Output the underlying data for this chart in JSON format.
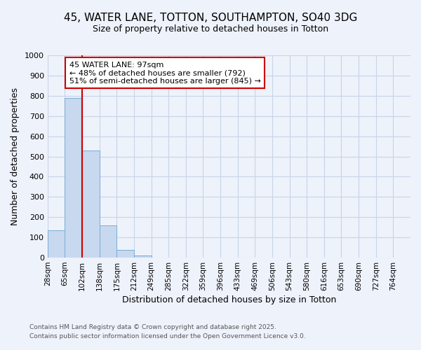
{
  "title_line1": "45, WATER LANE, TOTTON, SOUTHAMPTON, SO40 3DG",
  "title_line2": "Size of property relative to detached houses in Totton",
  "xlabel": "Distribution of detached houses by size in Totton",
  "ylabel": "Number of detached properties",
  "bins": [
    "28sqm",
    "65sqm",
    "102sqm",
    "138sqm",
    "175sqm",
    "212sqm",
    "249sqm",
    "285sqm",
    "322sqm",
    "359sqm",
    "396sqm",
    "433sqm",
    "469sqm",
    "506sqm",
    "543sqm",
    "580sqm",
    "616sqm",
    "653sqm",
    "690sqm",
    "727sqm",
    "764sqm"
  ],
  "values": [
    135,
    790,
    530,
    160,
    40,
    10,
    0,
    0,
    0,
    0,
    0,
    0,
    0,
    0,
    0,
    0,
    0,
    0,
    0,
    0,
    0
  ],
  "bar_color": "#c8d8ef",
  "bar_edge_color": "#7aaed6",
  "vline_color": "#cc0000",
  "vline_x_index": 1,
  "ylim": [
    0,
    1000
  ],
  "annotation_title": "45 WATER LANE: 97sqm",
  "annotation_line2": "← 48% of detached houses are smaller (792)",
  "annotation_line3": "51% of semi-detached houses are larger (845) →",
  "annotation_box_color": "#cc0000",
  "annotation_fill": "#ffffff",
  "footnote1": "Contains HM Land Registry data © Crown copyright and database right 2025.",
  "footnote2": "Contains public sector information licensed under the Open Government Licence v3.0.",
  "grid_color": "#c8d4e8",
  "bg_color": "#eef2fb",
  "title_fontsize": 11,
  "subtitle_fontsize": 9,
  "axis_label_fontsize": 9,
  "tick_fontsize": 7.5,
  "footnote_fontsize": 6.5,
  "annotation_fontsize": 8
}
